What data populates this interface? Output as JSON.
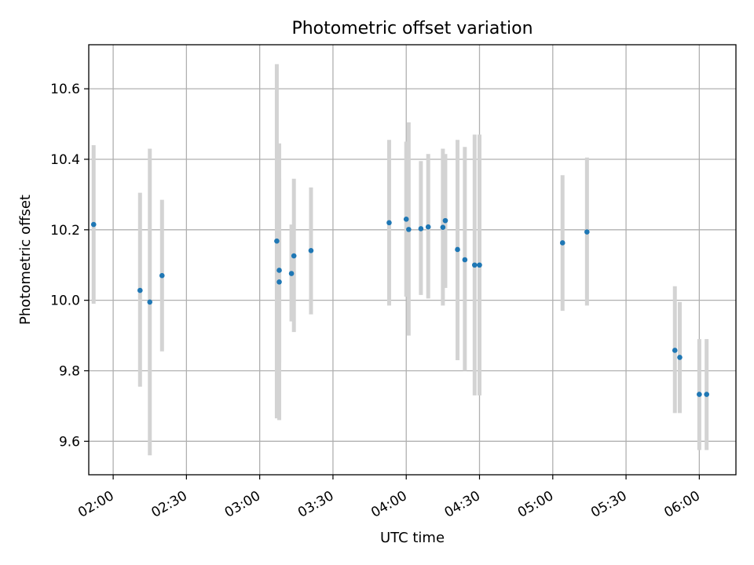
{
  "chart_data": {
    "type": "scatter",
    "title": "Photometric offset variation",
    "xlabel": "UTC time",
    "ylabel": "Photometric offset",
    "x_tick_labels": [
      "02:00",
      "02:30",
      "03:00",
      "03:30",
      "04:00",
      "04:30",
      "05:00",
      "05:30",
      "06:00"
    ],
    "y_tick_labels": [
      "9.6",
      "9.8",
      "10.0",
      "10.2",
      "10.4",
      "10.6"
    ],
    "xlim": [
      "01:50",
      "06:15"
    ],
    "ylim": [
      9.505,
      10.725
    ],
    "grid": true,
    "colors": {
      "point": "#1f77b4",
      "errorbar": "#d3d3d3",
      "grid": "#b0b0b0"
    },
    "points": [
      {
        "x": "01:52",
        "y": 10.215,
        "yerr_low": 9.99,
        "yerr_high": 10.44
      },
      {
        "x": "02:11",
        "y": 10.028,
        "yerr_low": 9.755,
        "yerr_high": 10.305
      },
      {
        "x": "02:15",
        "y": 9.995,
        "yerr_low": 9.56,
        "yerr_high": 10.43
      },
      {
        "x": "02:20",
        "y": 10.07,
        "yerr_low": 9.855,
        "yerr_high": 10.285
      },
      {
        "x": "03:07",
        "y": 10.168,
        "yerr_low": 9.665,
        "yerr_high": 10.67
      },
      {
        "x": "03:08",
        "y": 10.052,
        "yerr_low": 9.66,
        "yerr_high": 10.445
      },
      {
        "x": "03:08",
        "y": 10.085,
        "yerr_low": 9.825,
        "yerr_high": 10.345
      },
      {
        "x": "03:13",
        "y": 10.076,
        "yerr_low": 9.94,
        "yerr_high": 10.215
      },
      {
        "x": "03:14",
        "y": 10.126,
        "yerr_low": 9.91,
        "yerr_high": 10.345
      },
      {
        "x": "03:21",
        "y": 10.141,
        "yerr_low": 9.96,
        "yerr_high": 10.32
      },
      {
        "x": "03:53",
        "y": 10.22,
        "yerr_low": 9.985,
        "yerr_high": 10.455
      },
      {
        "x": "04:00",
        "y": 10.23,
        "yerr_low": 10.01,
        "yerr_high": 10.45
      },
      {
        "x": "04:01",
        "y": 10.201,
        "yerr_low": 9.9,
        "yerr_high": 10.505
      },
      {
        "x": "04:06",
        "y": 10.203,
        "yerr_low": 10.015,
        "yerr_high": 10.395
      },
      {
        "x": "04:09",
        "y": 10.208,
        "yerr_low": 10.005,
        "yerr_high": 10.415
      },
      {
        "x": "04:15",
        "y": 10.207,
        "yerr_low": 9.985,
        "yerr_high": 10.43
      },
      {
        "x": "04:16",
        "y": 10.226,
        "yerr_low": 10.035,
        "yerr_high": 10.415
      },
      {
        "x": "04:21",
        "y": 10.144,
        "yerr_low": 9.83,
        "yerr_high": 10.455
      },
      {
        "x": "04:24",
        "y": 10.115,
        "yerr_low": 9.8,
        "yerr_high": 10.435
      },
      {
        "x": "04:28",
        "y": 10.1,
        "yerr_low": 9.73,
        "yerr_high": 10.47
      },
      {
        "x": "04:30",
        "y": 10.1,
        "yerr_low": 9.73,
        "yerr_high": 10.47
      },
      {
        "x": "05:04",
        "y": 10.163,
        "yerr_low": 9.97,
        "yerr_high": 10.355
      },
      {
        "x": "05:14",
        "y": 10.194,
        "yerr_low": 9.985,
        "yerr_high": 10.405
      },
      {
        "x": "05:50",
        "y": 9.858,
        "yerr_low": 9.68,
        "yerr_high": 10.04
      },
      {
        "x": "05:52",
        "y": 9.838,
        "yerr_low": 9.68,
        "yerr_high": 9.995
      },
      {
        "x": "06:00",
        "y": 9.733,
        "yerr_low": 9.575,
        "yerr_high": 9.89
      },
      {
        "x": "06:03",
        "y": 9.733,
        "yerr_low": 9.575,
        "yerr_high": 9.89
      }
    ]
  }
}
